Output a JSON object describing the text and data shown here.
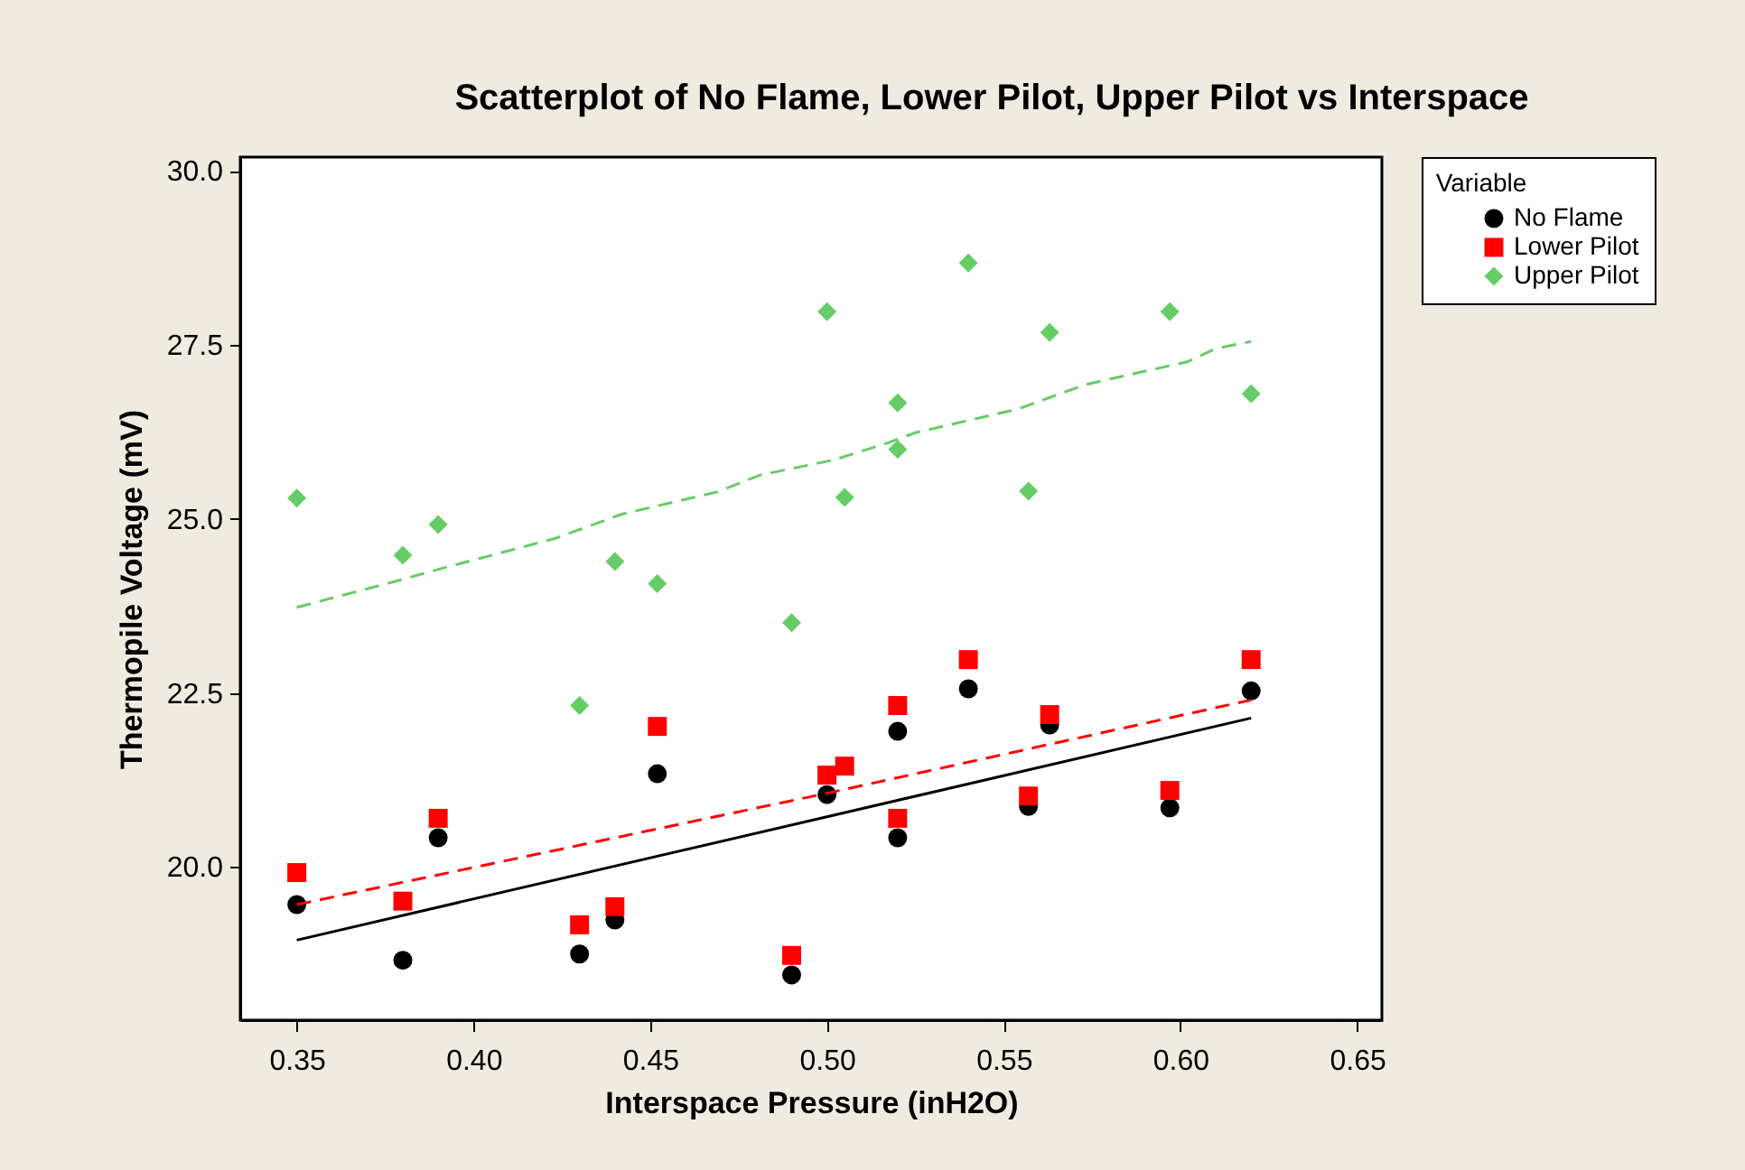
{
  "chart_data": {
    "type": "scatter",
    "title": "Scatterplot of No Flame, Lower Pilot, Upper Pilot vs Interspace",
    "xlabel": "Interspace Pressure (inH2O)",
    "ylabel": "Thermopile Voltage (mV)",
    "legend_title": "Variable",
    "legend": "right",
    "grid": false,
    "xlim": [
      0.334,
      0.657
    ],
    "xticks": [
      {
        "value": 0.35,
        "label": "0.35"
      },
      {
        "value": 0.4,
        "label": "0.40"
      },
      {
        "value": 0.45,
        "label": "0.45"
      },
      {
        "value": 0.5,
        "label": "0.50"
      },
      {
        "value": 0.55,
        "label": "0.55"
      },
      {
        "value": 0.6,
        "label": "0.60"
      },
      {
        "value": 0.65,
        "label": "0.65"
      }
    ],
    "ylim": [
      17.8,
      30.2
    ],
    "yticks": [
      {
        "value": 20,
        "label": "20.0"
      },
      {
        "value": 22.5,
        "label": "22.5"
      },
      {
        "value": 25,
        "label": "25.0"
      },
      {
        "value": 27.5,
        "label": "27.5"
      },
      {
        "value": 30,
        "label": "30.0"
      }
    ],
    "series": [
      {
        "name": "No Flame",
        "color": "#000000",
        "marker": "circle",
        "x": [
          0.35,
          0.38,
          0.39,
          0.43,
          0.44,
          0.452,
          0.49,
          0.5,
          0.52,
          0.52,
          0.54,
          0.557,
          0.563,
          0.597,
          0.62
        ],
        "values": [
          19.46,
          18.66,
          20.42,
          18.75,
          19.24,
          21.34,
          18.45,
          21.04,
          21.95,
          20.42,
          22.56,
          20.87,
          22.04,
          20.85,
          22.53
        ]
      },
      {
        "name": "Lower Pilot",
        "color": "#ff0000",
        "marker": "square",
        "x": [
          0.35,
          0.38,
          0.39,
          0.43,
          0.44,
          0.452,
          0.49,
          0.5,
          0.505,
          0.52,
          0.52,
          0.54,
          0.557,
          0.563,
          0.597,
          0.62
        ],
        "values": [
          19.92,
          19.51,
          20.7,
          19.17,
          19.43,
          22.02,
          18.73,
          21.32,
          21.45,
          22.32,
          20.7,
          22.98,
          21.02,
          22.19,
          21.1,
          22.98
        ]
      },
      {
        "name": "Upper Pilot",
        "color": "#66cc66",
        "marker": "diamond",
        "x": [
          0.35,
          0.38,
          0.39,
          0.43,
          0.44,
          0.452,
          0.49,
          0.5,
          0.505,
          0.52,
          0.52,
          0.54,
          0.557,
          0.563,
          0.597,
          0.62
        ],
        "values": [
          25.3,
          24.48,
          24.92,
          22.32,
          24.39,
          24.07,
          23.51,
          27.98,
          25.31,
          26.67,
          26.0,
          28.68,
          25.4,
          27.68,
          27.98,
          26.8
        ]
      },
      {
        "type": "line",
        "color": "#000000",
        "line_style": "solid",
        "x": [
          0.35,
          0.62
        ],
        "values": [
          18.95,
          22.14
        ]
      },
      {
        "type": "line",
        "color": "#ff0000",
        "line_style": "dashed",
        "x": [
          0.35,
          0.5,
          0.62
        ],
        "values": [
          19.46,
          21.06,
          22.4
        ]
      },
      {
        "type": "line",
        "color": "#66cc66",
        "line_style": "dashed",
        "x": [
          0.35,
          0.379,
          0.391,
          0.423,
          0.442,
          0.469,
          0.481,
          0.502,
          0.517,
          0.525,
          0.554,
          0.573,
          0.602,
          0.61,
          0.62
        ],
        "values": [
          23.73,
          24.12,
          24.29,
          24.72,
          25.07,
          25.39,
          25.63,
          25.85,
          26.09,
          26.24,
          26.58,
          26.93,
          27.26,
          27.45,
          27.55
        ]
      }
    ]
  }
}
